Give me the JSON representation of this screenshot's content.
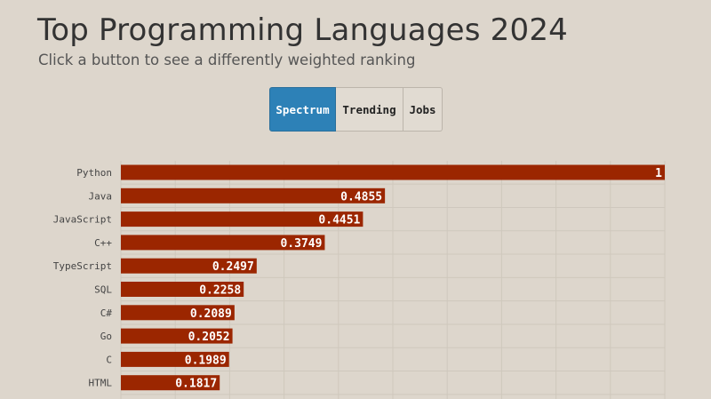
{
  "header": {
    "title": "Top Programming Languages 2024",
    "subtitle": "Click a button to see a differently weighted ranking"
  },
  "buttons": [
    {
      "label": "Spectrum",
      "active": true
    },
    {
      "label": "Trending",
      "active": false
    },
    {
      "label": "Jobs",
      "active": false
    }
  ],
  "colors": {
    "bar": "#9b2600",
    "grid": "#cfc8bd",
    "active_button": "#2d81b7"
  },
  "chart_data": {
    "type": "bar",
    "orientation": "horizontal",
    "categories": [
      "Python",
      "Java",
      "JavaScript",
      "C++",
      "TypeScript",
      "SQL",
      "C#",
      "Go",
      "C",
      "HTML"
    ],
    "values": [
      1,
      0.4855,
      0.4451,
      0.3749,
      0.2497,
      0.2258,
      0.2089,
      0.2052,
      0.1989,
      0.1817
    ],
    "value_labels": [
      "1",
      "0.4855",
      "0.4451",
      "0.3749",
      "0.2497",
      "0.2258",
      "0.2089",
      "0.2052",
      "0.1989",
      "0.1817"
    ],
    "xlim": [
      0,
      1
    ],
    "grid": true
  }
}
